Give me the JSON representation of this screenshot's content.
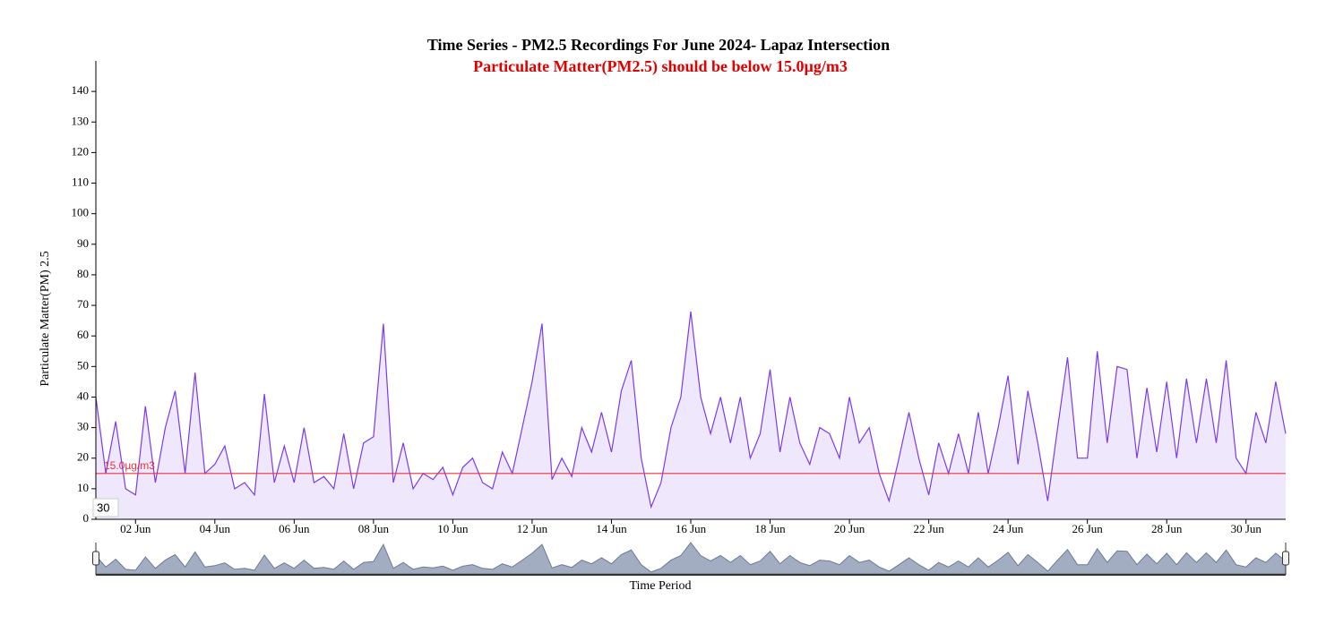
{
  "chart_data": {
    "type": "line",
    "title": "Time Series - PM2.5 Recordings For June 2024- Lapaz Intersection",
    "subtitle": "Particulate Matter(PM2.5) should be below 15.0µg/m3",
    "y_label": "Particulate Matter(PM) 2.5",
    "x_label": "Time Period",
    "tooltip": "30",
    "threshold": {
      "value": 15,
      "label": "15.0µg/m3",
      "color": "#e8323c"
    },
    "xlim": [
      1,
      31
    ],
    "xticks": [
      {
        "value": 2,
        "label": "02 Jun"
      },
      {
        "value": 4,
        "label": "04 Jun"
      },
      {
        "value": 6,
        "label": "06 Jun"
      },
      {
        "value": 8,
        "label": "08 Jun"
      },
      {
        "value": 10,
        "label": "10 Jun"
      },
      {
        "value": 12,
        "label": "12 Jun"
      },
      {
        "value": 14,
        "label": "14 Jun"
      },
      {
        "value": 16,
        "label": "16 Jun"
      },
      {
        "value": 18,
        "label": "18 Jun"
      },
      {
        "value": 20,
        "label": "20 Jun"
      },
      {
        "value": 22,
        "label": "22 Jun"
      },
      {
        "value": 24,
        "label": "24 Jun"
      },
      {
        "value": 26,
        "label": "26 Jun"
      },
      {
        "value": 28,
        "label": "28 Jun"
      },
      {
        "value": 30,
        "label": "30 Jun"
      }
    ],
    "ylim": [
      0,
      150
    ],
    "yticks": [
      0,
      10,
      20,
      30,
      40,
      50,
      60,
      70,
      80,
      90,
      100,
      110,
      120,
      130,
      140
    ],
    "x": [
      1,
      1.25,
      1.5,
      1.75,
      2,
      2.25,
      2.5,
      2.75,
      3,
      3.25,
      3.5,
      3.75,
      4,
      4.25,
      4.5,
      4.75,
      5,
      5.25,
      5.5,
      5.75,
      6,
      6.25,
      6.5,
      6.75,
      7,
      7.25,
      7.5,
      7.75,
      8,
      8.25,
      8.5,
      8.75,
      9,
      9.25,
      9.5,
      9.75,
      10,
      10.25,
      10.5,
      10.75,
      11,
      11.25,
      11.5,
      11.75,
      12,
      12.25,
      12.5,
      12.75,
      13,
      13.25,
      13.5,
      13.75,
      14,
      14.25,
      14.5,
      14.75,
      15,
      15.25,
      15.5,
      15.75,
      16,
      16.25,
      16.5,
      16.75,
      17,
      17.25,
      17.5,
      17.75,
      18,
      18.25,
      18.5,
      18.75,
      19,
      19.25,
      19.5,
      19.75,
      20,
      20.25,
      20.5,
      20.75,
      21,
      21.25,
      21.5,
      21.75,
      22,
      22.25,
      22.5,
      22.75,
      23,
      23.25,
      23.5,
      23.75,
      24,
      24.25,
      24.5,
      24.75,
      25,
      25.25,
      25.5,
      25.75,
      26,
      26.25,
      26.5,
      26.75,
      27,
      27.25,
      27.5,
      27.75,
      28,
      28.25,
      28.5,
      28.75,
      29,
      29.25,
      29.5,
      29.75,
      30,
      30.25,
      30.5,
      30.75,
      31
    ],
    "series": [
      {
        "name": "PM2.5",
        "color": "#7c3aed",
        "fill": "#efe8fc",
        "values": [
          40,
          15,
          32,
          10,
          8,
          37,
          12,
          30,
          42,
          15,
          48,
          15,
          18,
          24,
          10,
          12,
          8,
          41,
          12,
          24,
          12,
          30,
          12,
          14,
          10,
          28,
          10,
          25,
          27,
          64,
          12,
          25,
          10,
          15,
          13,
          17,
          8,
          17,
          20,
          12,
          10,
          22,
          15,
          30,
          45,
          64,
          13,
          20,
          14,
          30,
          22,
          35,
          22,
          42,
          52,
          20,
          4,
          12,
          30,
          40,
          68,
          40,
          28,
          40,
          25,
          40,
          20,
          28,
          49,
          22,
          40,
          25,
          18,
          30,
          28,
          20,
          40,
          25,
          30,
          15,
          6,
          20,
          35,
          20,
          8,
          25,
          15,
          28,
          15,
          35,
          15,
          30,
          47,
          18,
          42,
          25,
          6,
          30,
          53,
          20,
          20,
          55,
          25,
          50,
          49,
          20,
          43,
          22,
          45,
          20,
          46,
          25,
          46,
          25,
          52,
          20,
          15,
          35,
          25,
          45,
          28
        ]
      }
    ]
  }
}
